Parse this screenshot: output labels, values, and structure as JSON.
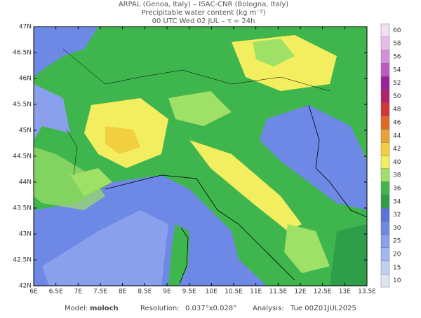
{
  "header": {
    "line1": "ARPAL (Genoa, Italy)  –  ISAC-CNR (Bologna, Italy)",
    "line2": "Precipitable water content (kg m⁻²)",
    "line3": "00 UTC Wed 02 JUL  –  τ = 24h"
  },
  "map": {
    "lat_ticks": [
      {
        "value": 42,
        "label": "42N"
      },
      {
        "value": 42.5,
        "label": "42.5N"
      },
      {
        "value": 43,
        "label": "43N"
      },
      {
        "value": 43.5,
        "label": "43.5N"
      },
      {
        "value": 44,
        "label": "44N"
      },
      {
        "value": 44.5,
        "label": "44.5N"
      },
      {
        "value": 45,
        "label": "45N"
      },
      {
        "value": 45.5,
        "label": "45.5N"
      },
      {
        "value": 46,
        "label": "46N"
      },
      {
        "value": 46.5,
        "label": "46.5N"
      },
      {
        "value": 47,
        "label": "47N"
      }
    ],
    "lon_ticks": [
      {
        "value": 6,
        "label": "6E"
      },
      {
        "value": 6.5,
        "label": "6.5E"
      },
      {
        "value": 7,
        "label": "7E"
      },
      {
        "value": 7.5,
        "label": "7.5E"
      },
      {
        "value": 8,
        "label": "8E"
      },
      {
        "value": 8.5,
        "label": "8.5E"
      },
      {
        "value": 9,
        "label": "9E"
      },
      {
        "value": 9.5,
        "label": "9.5E"
      },
      {
        "value": 10,
        "label": "10E"
      },
      {
        "value": 10.5,
        "label": "10.5E"
      },
      {
        "value": 11,
        "label": "11E"
      },
      {
        "value": 11.5,
        "label": "11.5E"
      },
      {
        "value": 12,
        "label": "12E"
      },
      {
        "value": 12.5,
        "label": "12.5E"
      },
      {
        "value": 13,
        "label": "13E"
      },
      {
        "value": 13.5,
        "label": "13.5E"
      }
    ],
    "colorbar": {
      "levels": [
        10,
        15,
        20,
        25,
        30,
        32,
        34,
        36,
        38,
        40,
        42,
        44,
        46,
        48,
        50,
        52,
        54,
        56,
        58,
        60
      ],
      "colors": [
        "#dde4f2",
        "#c2cff2",
        "#a2b6f2",
        "#8aa0ec",
        "#6e88e6",
        "#5a74dc",
        "#2f9e4a",
        "#3fb54e",
        "#9fe066",
        "#f2ee60",
        "#f2cf3e",
        "#e9a232",
        "#e06a24",
        "#d23636",
        "#b2226a",
        "#9c209c",
        "#bc5cc2",
        "#d390da",
        "#e6bde9",
        "#f3dff4"
      ]
    }
  },
  "footer": {
    "model_label": "Model:",
    "model": "moloch",
    "resolution_label": "Resolution:",
    "resolution": "0.037°x0.028°",
    "analysis_label": "Analysis:",
    "analysis": "Tue 00Z01JUL2025"
  }
}
